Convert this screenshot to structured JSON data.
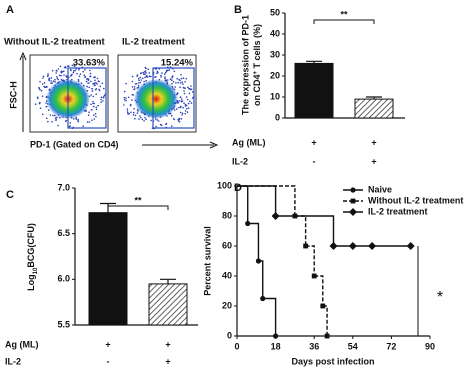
{
  "panel_labels": [
    "A",
    "B",
    "C",
    "D"
  ],
  "flow": {
    "titles": [
      "Without IL-2 treatment",
      "IL-2 treatment"
    ],
    "percentages": [
      "33.63%",
      "15.24%"
    ],
    "ylabel": "FSC-H",
    "xlabel": "PD-1 (Gated on CD4)"
  },
  "chart_data": [
    {
      "type": "bar",
      "ylabel": {
        "line1": "The expression of PD-1",
        "line2": "on CD4",
        "sup": "+",
        "rest": " T cells (%)"
      },
      "categories": [
        null,
        null
      ],
      "values": [
        26,
        9
      ],
      "errors": [
        1,
        1
      ],
      "fills": [
        "solid",
        "hatched"
      ],
      "color": "#111111",
      "ylim": [
        0,
        50
      ],
      "yticks": [
        0,
        10,
        20,
        30,
        40,
        50
      ],
      "significance": "**",
      "rows": [
        {
          "label": "Ag (ML)",
          "values": [
            "+",
            "+"
          ]
        },
        {
          "label": "IL-2",
          "values": [
            "-",
            "+"
          ]
        }
      ]
    },
    {
      "type": "bar",
      "ylabel": {
        "base": "Log",
        "sub": "10",
        "rest": "BCG(CFU)"
      },
      "categories": [
        null,
        null
      ],
      "values": [
        6.73,
        5.95
      ],
      "errors": [
        0.1,
        0.05
      ],
      "fills": [
        "solid",
        "hatched"
      ],
      "color": "#111111",
      "ylim": [
        5.5,
        7.0
      ],
      "yticks": [
        5.5,
        {
          "value": 6.0,
          "label": "6.0"
        },
        6.5,
        {
          "value": 7.0,
          "label": "7.0"
        }
      ],
      "significance": "**",
      "rows": [
        {
          "label": "Ag (ML)",
          "values": [
            "+",
            "+"
          ]
        },
        {
          "label": "IL-2",
          "values": [
            "-",
            "+"
          ]
        }
      ]
    },
    {
      "type": "line",
      "step": true,
      "xlabel": "Days post infection",
      "ylabel": "Percent survival",
      "xlim": [
        0,
        90
      ],
      "ylim": [
        0,
        100
      ],
      "xticks": [
        0,
        18,
        36,
        54,
        72,
        90
      ],
      "yticks": [
        0,
        20,
        40,
        60,
        80,
        100
      ],
      "significance": "*",
      "series": [
        {
          "name": "Naive",
          "color": "#111111",
          "dash": false,
          "marker": "circle",
          "x": [
            0,
            5,
            10,
            12,
            18
          ],
          "values": [
            100,
            75,
            50,
            25,
            0
          ]
        },
        {
          "name": "Without IL-2 treatment",
          "color": "#111111",
          "dash": true,
          "marker": "square",
          "x": [
            0,
            27,
            32,
            36,
            40,
            42
          ],
          "values": [
            100,
            80,
            60,
            40,
            20,
            0
          ]
        },
        {
          "name": "IL-2 treatment",
          "color": "#111111",
          "dash": false,
          "marker": "diamond",
          "x": [
            0,
            18,
            45,
            54,
            63,
            81
          ],
          "values": [
            100,
            80,
            60,
            60,
            60,
            60
          ]
        }
      ]
    }
  ]
}
